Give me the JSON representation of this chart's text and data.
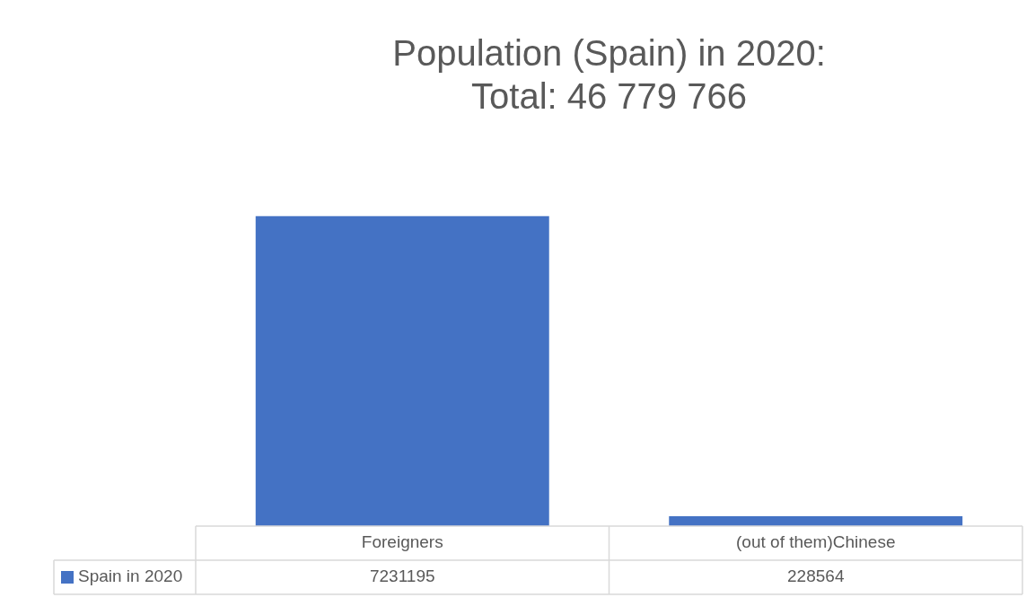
{
  "chart_data": {
    "type": "bar",
    "title": [
      "Population (Spain) in 2020:",
      "Total: 46 779 766"
    ],
    "categories": [
      "Foreigners",
      "(out of them)Chinese"
    ],
    "series": [
      {
        "name": "Spain in 2020",
        "color": "#4472c4",
        "values": [
          7231195,
          228564
        ]
      }
    ],
    "data_labels": true,
    "legend": "bottom"
  }
}
